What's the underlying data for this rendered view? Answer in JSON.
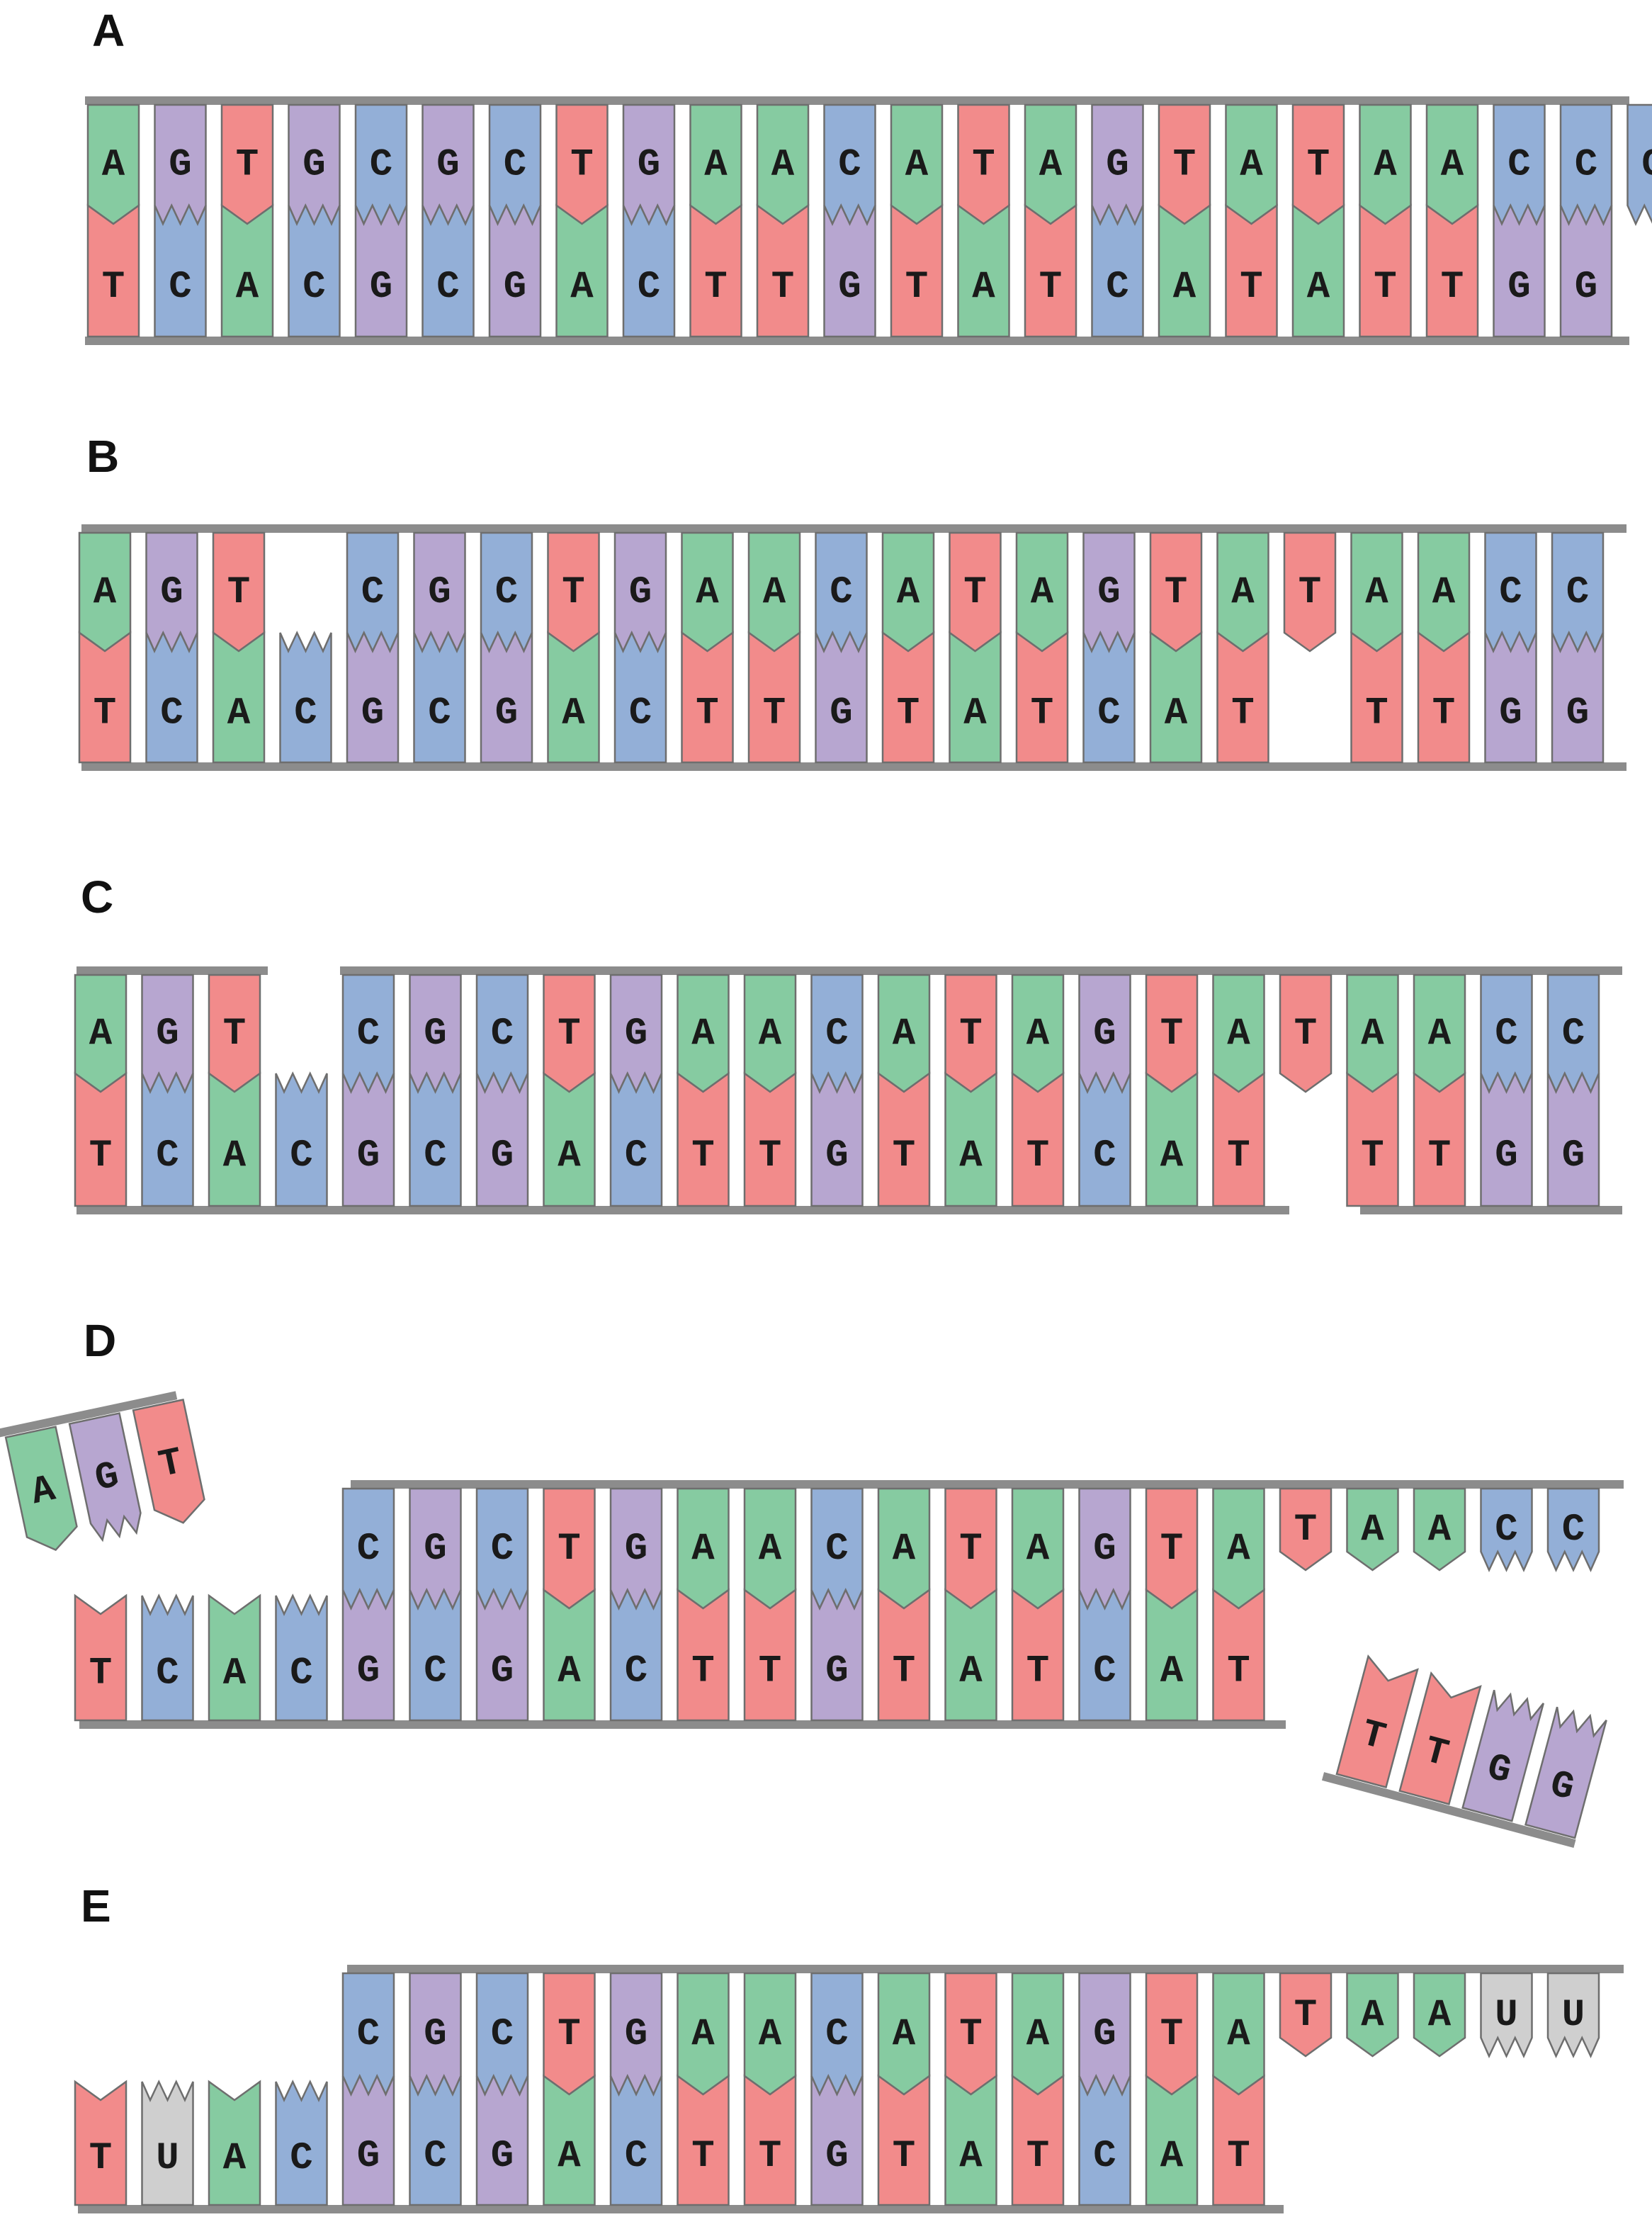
{
  "colors": {
    "A": "#86cba1",
    "T": "#f28b8b",
    "G": "#b7a6d0",
    "C": "#93afd7",
    "U": "#cfcfcf",
    "backbone": "#8c8c8c",
    "outline": "#6e6e6e"
  },
  "shapes": {
    "A": "chevron",
    "T": "chevron",
    "G": "zigzag",
    "C": "zigzag",
    "U": "zigzag"
  },
  "panels": [
    {
      "label": "A",
      "top": "AGTGCGCTGAACATAGTATAACC C",
      "bottom": "TCACGCGACTTGTATCATATTGG"
    },
    {
      "label": "B",
      "top": "AGT-CGCTGAACATAGTATAACC",
      "bottom": "TCACGCGACTTGTATCAT-TTGG"
    },
    {
      "label": "C",
      "top": "AGT-CGCTGAACATAGTATAACC",
      "bottom": "TCACGCGACTTGTATCAT-TTGG"
    },
    {
      "label": "D",
      "detached_left": "AGT",
      "top": "CGCTGAACATAGTATAACC",
      "bottom": "TCACGCGACTTGTATCAT",
      "detached_right": "TTGG"
    },
    {
      "label": "E",
      "top": "CGCTGAACATAGTATAAUU",
      "bottom": "TUACGCGACTTGTATCAT"
    }
  ]
}
